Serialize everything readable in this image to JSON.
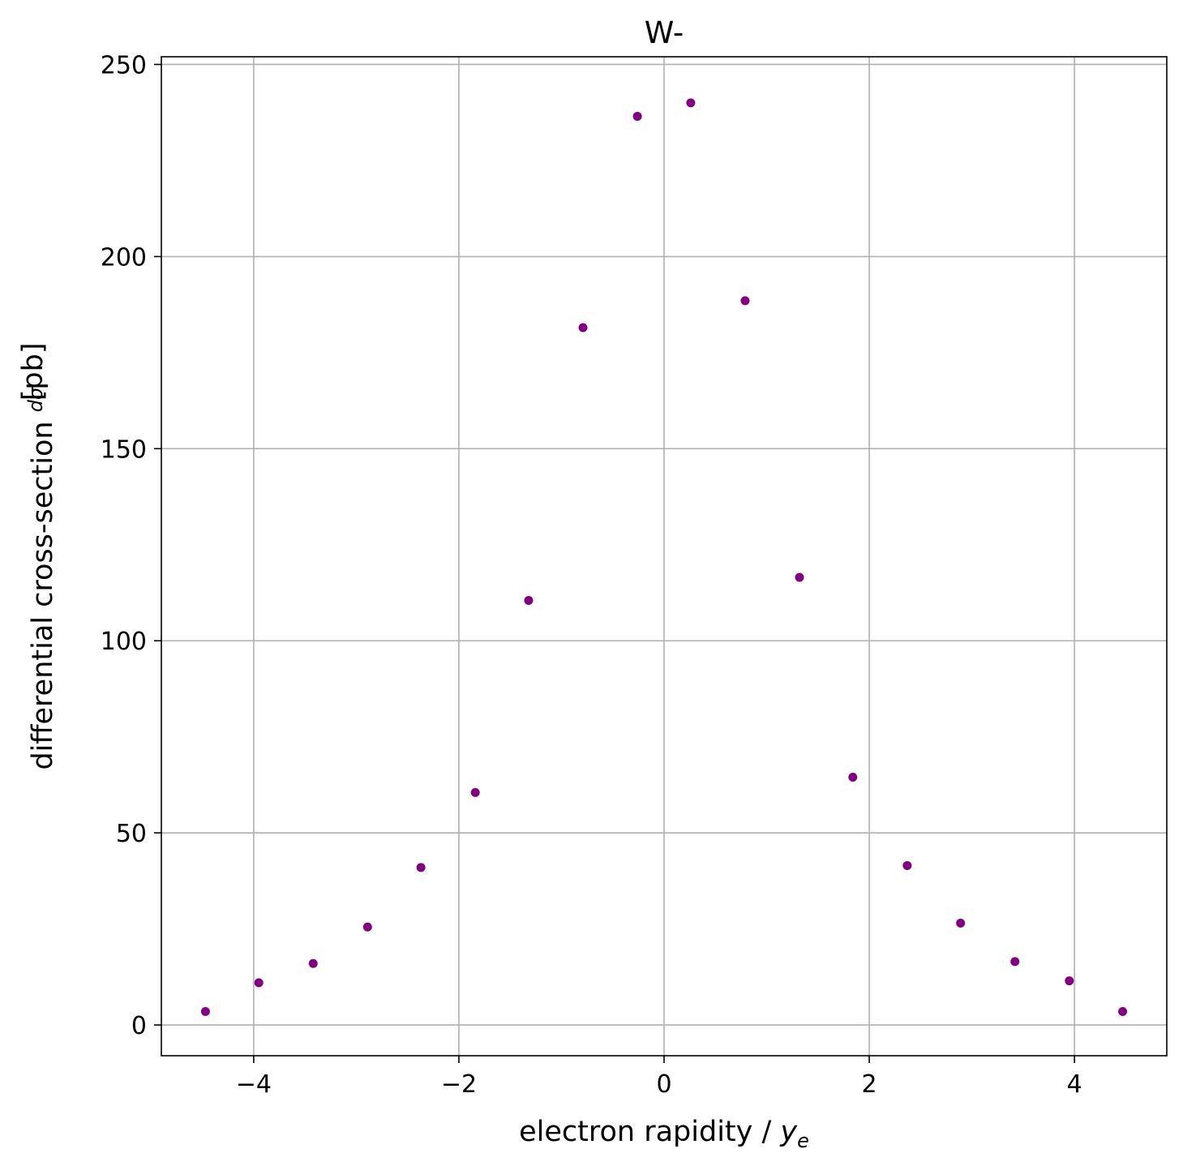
{
  "chart_data": {
    "type": "scatter",
    "title": "W-",
    "xlabel": "electron rapidity / y_e",
    "ylabel": "differential cross-section dσ/dy_e [pb]",
    "xlim": [
      -4.9,
      4.9
    ],
    "ylim": [
      -8,
      252
    ],
    "grid": true,
    "marker_color": "#800080",
    "xticks": [
      -4,
      -2,
      0,
      2,
      4
    ],
    "xtick_labels": [
      "−4",
      "−2",
      "0",
      "2",
      "4"
    ],
    "yticks": [
      0,
      50,
      100,
      150,
      200,
      250
    ],
    "ytick_labels": [
      "0",
      "50",
      "100",
      "150",
      "200",
      "250"
    ],
    "series": [
      {
        "x": [
          -4.47,
          -3.95,
          -3.42,
          -2.89,
          -2.37,
          -1.84,
          -1.32,
          -0.79,
          -0.26,
          0.26,
          0.79,
          1.32,
          1.84,
          2.37,
          2.89,
          3.42,
          3.95,
          4.47
        ],
        "y": [
          3.5,
          11.0,
          16.0,
          25.5,
          41.0,
          60.5,
          110.5,
          181.5,
          236.5,
          240.0,
          188.5,
          116.5,
          64.5,
          41.5,
          26.5,
          16.5,
          11.5,
          3.5
        ]
      }
    ]
  }
}
